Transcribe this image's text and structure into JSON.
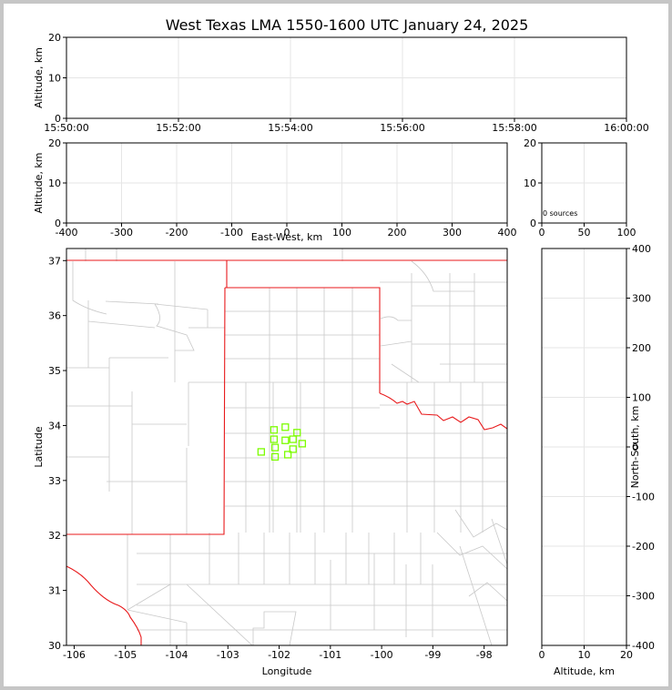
{
  "chart_data": [
    {
      "name": "time-height",
      "type": "scatter",
      "title": "West Texas LMA 1550-1600 UTC January 24, 2025",
      "xlabel": "",
      "ylabel": "Altitude, km",
      "xticks": [
        "15:50:00",
        "15:52:00",
        "15:54:00",
        "15:56:00",
        "15:58:00",
        "16:00:00"
      ],
      "ylim": [
        0,
        20
      ],
      "yticks": [
        0,
        10,
        20
      ],
      "grid": true,
      "points": []
    },
    {
      "name": "east-west-altitude",
      "type": "scatter",
      "xlabel": "East-West, km",
      "ylabel": "Altitude, km",
      "xlim": [
        -400,
        400
      ],
      "xticks": [
        -400,
        -300,
        -200,
        -100,
        0,
        100,
        200,
        300,
        400
      ],
      "ylim": [
        0,
        20
      ],
      "yticks": [
        0,
        10,
        20
      ],
      "grid": true,
      "points": []
    },
    {
      "name": "histogram",
      "type": "bar",
      "annotation": "0 sources",
      "xlim": [
        0,
        100
      ],
      "xticks": [
        0,
        50,
        100
      ],
      "ylim": [
        0,
        20
      ],
      "yticks": [
        0,
        10,
        20
      ],
      "grid": true,
      "values": []
    },
    {
      "name": "plan-view",
      "type": "scatter",
      "xlabel": "Longitude",
      "ylabel": "Latitude",
      "xlim": [
        -106.15,
        -97.55
      ],
      "ylim": [
        30.0,
        37.22
      ],
      "xticks": [
        -106,
        -105,
        -104,
        -103,
        -102,
        -101,
        -100,
        -99,
        -98
      ],
      "yticks": [
        30,
        31,
        32,
        33,
        34,
        35,
        36,
        37
      ],
      "grid": true,
      "marker_color": "#7cfc00",
      "points": [
        {
          "lon": -102.35,
          "lat": 33.52
        },
        {
          "lon": -102.1,
          "lat": 33.92
        },
        {
          "lon": -102.1,
          "lat": 33.75
        },
        {
          "lon": -102.08,
          "lat": 33.6
        },
        {
          "lon": -102.08,
          "lat": 33.43
        },
        {
          "lon": -101.88,
          "lat": 33.97
        },
        {
          "lon": -101.88,
          "lat": 33.73
        },
        {
          "lon": -101.83,
          "lat": 33.47
        },
        {
          "lon": -101.73,
          "lat": 33.75
        },
        {
          "lon": -101.73,
          "lat": 33.57
        },
        {
          "lon": -101.65,
          "lat": 33.87
        },
        {
          "lon": -101.55,
          "lat": 33.67
        }
      ]
    },
    {
      "name": "altitude-north-south",
      "type": "scatter",
      "xlabel": "Altitude, km",
      "ylabel": "North-South, km",
      "xlim": [
        0,
        20
      ],
      "xticks": [
        0,
        10,
        20
      ],
      "ylim": [
        -400,
        400
      ],
      "yticks": [
        -400,
        -300,
        -200,
        -100,
        0,
        100,
        200,
        300,
        400
      ],
      "grid": true,
      "points": []
    }
  ]
}
